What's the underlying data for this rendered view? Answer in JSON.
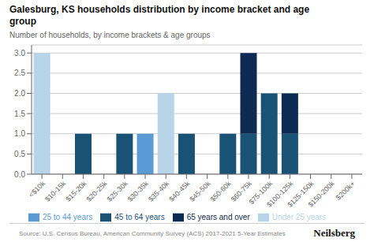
{
  "chart_data": {
    "type": "bar",
    "title": "Galesburg, KS households distribution by income bracket and age\ngroup",
    "subtitle": "Number of households, by income brackets & age groups",
    "source": "Source: U.S. Census Bureau, American Community Survey (ACS) 2017-2021 5-Year Estimates",
    "annotations": [
      "Neilsberg"
    ],
    "categories": [
      "<$10k",
      "$10-15k",
      "$15-20k",
      "$20-25k",
      "$25-30k",
      "$30-35k",
      "$35-40k",
      "$40-45k",
      "$45-50k",
      "$50-60k",
      "$60-75k",
      "$75-100k",
      "$100-125k",
      "$125-150k",
      "$150-200k",
      "$200k+"
    ],
    "series": [
      {
        "name": "Under 25 years",
        "color": "#b8d4e8",
        "values": [
          3,
          0,
          0,
          0,
          0,
          0,
          2,
          0,
          0,
          0,
          0,
          0,
          0,
          0,
          0,
          0
        ]
      },
      {
        "name": "25 to 44 years",
        "color": "#5b9bd5",
        "values": [
          0,
          0,
          0,
          0,
          0,
          1,
          0,
          0,
          0,
          0,
          0,
          0,
          0,
          0,
          0,
          0
        ]
      },
      {
        "name": "45 to 64 years",
        "color": "#1a5276",
        "values": [
          0,
          0,
          1,
          0,
          1,
          0,
          0,
          1,
          0,
          1,
          1,
          2,
          1,
          0,
          0,
          0
        ]
      },
      {
        "name": "65 years and over",
        "color": "#0d2b52",
        "values": [
          0,
          0,
          0,
          0,
          0,
          0,
          0,
          0,
          0,
          0,
          2,
          0,
          1,
          0,
          0,
          0
        ]
      }
    ],
    "stacked": true,
    "ylim": [
      0,
      3.2
    ],
    "yticks": [
      {
        "value": 0,
        "label": "0.0"
      },
      0.5,
      {
        "value": 1,
        "label": "1.0"
      },
      1.5,
      {
        "value": 2,
        "label": "2.0"
      },
      2.5,
      {
        "value": 3,
        "label": "3.0"
      }
    ],
    "grid": true,
    "legend": "bottom"
  }
}
